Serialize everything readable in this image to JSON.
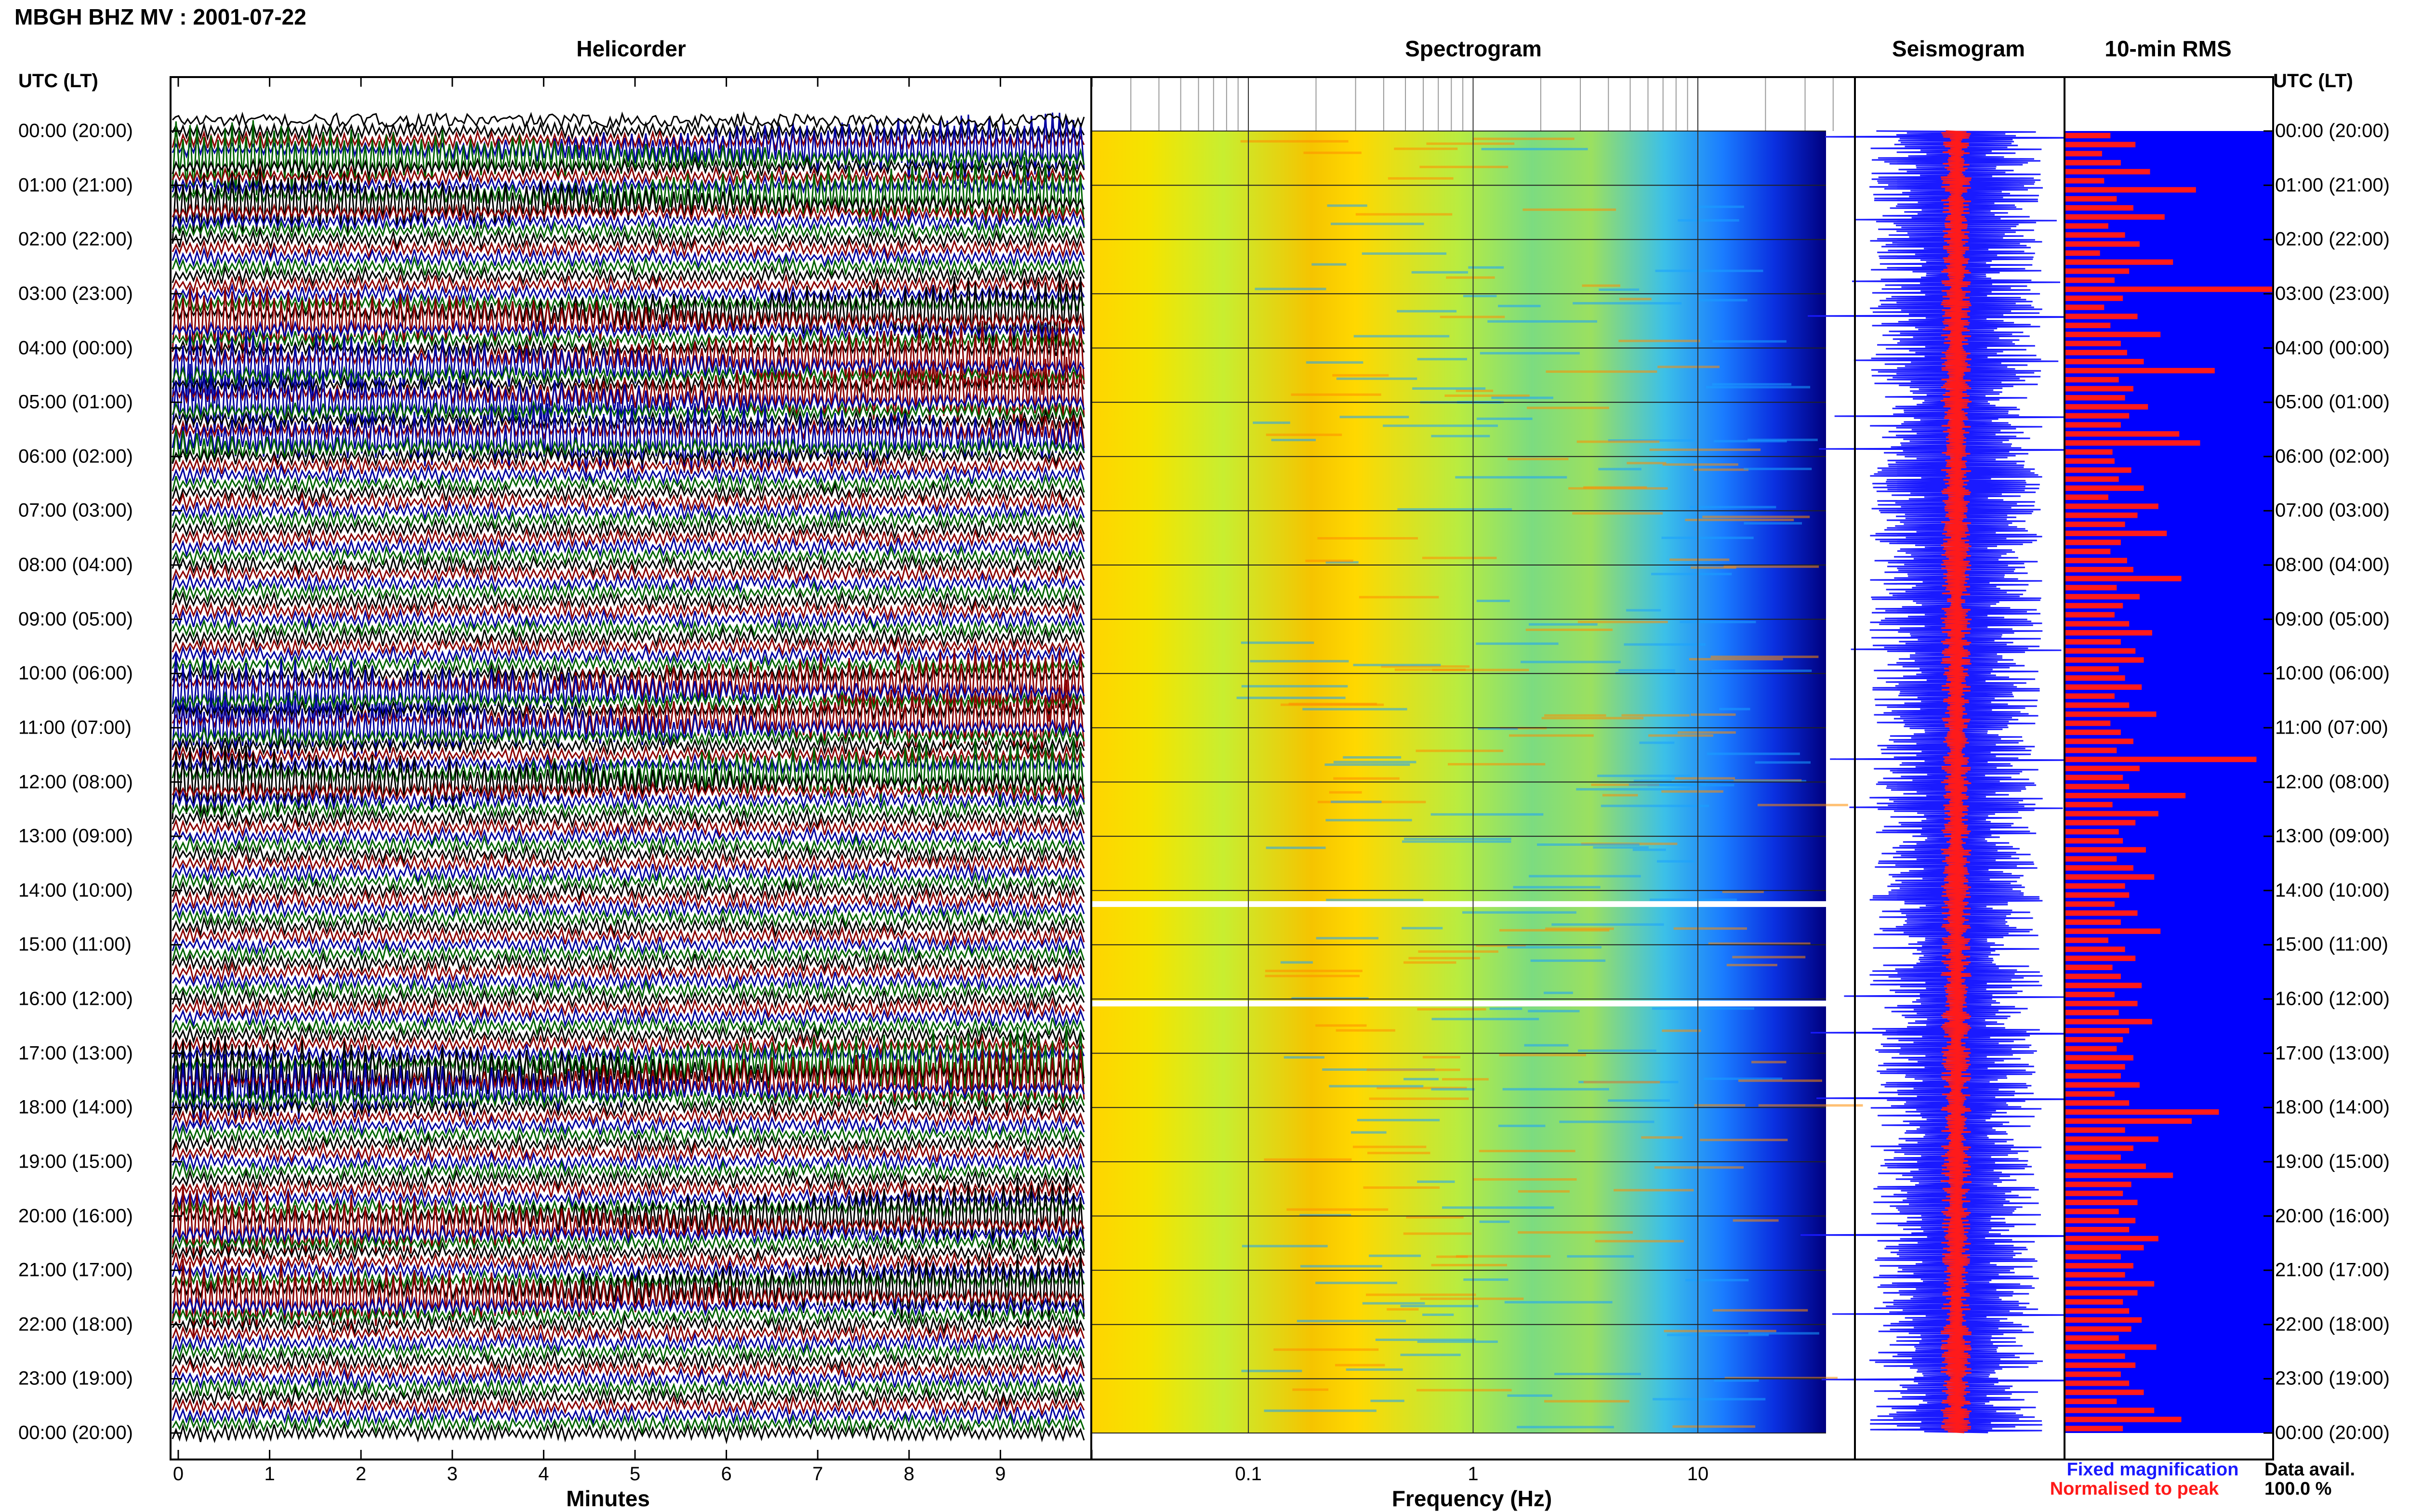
{
  "header": {
    "title": "MBGH BHZ MV : 2001-07-22"
  },
  "panels": {
    "helicorder_title": "Helicorder",
    "spectrogram_title": "Spectrogram",
    "seismogram_title": "Seismogram",
    "rms_title": "10-min RMS"
  },
  "time_axis": {
    "header_left": "UTC (LT)",
    "header_right": "UTC (LT)",
    "labels": [
      "00:00 (20:00)",
      "01:00 (21:00)",
      "02:00 (22:00)",
      "03:00 (23:00)",
      "04:00 (00:00)",
      "05:00 (01:00)",
      "06:00 (02:00)",
      "07:00 (03:00)",
      "08:00 (04:00)",
      "09:00 (05:00)",
      "10:00 (06:00)",
      "11:00 (07:00)",
      "12:00 (08:00)",
      "13:00 (09:00)",
      "14:00 (10:00)",
      "15:00 (11:00)",
      "16:00 (12:00)",
      "17:00 (13:00)",
      "18:00 (14:00)",
      "19:00 (15:00)",
      "20:00 (16:00)",
      "21:00 (17:00)",
      "22:00 (18:00)",
      "23:00 (19:00)",
      "00:00 (20:00)"
    ]
  },
  "helicorder_axis": {
    "label": "Minutes",
    "ticks": [
      "0",
      "1",
      "2",
      "3",
      "4",
      "5",
      "6",
      "7",
      "8",
      "9"
    ]
  },
  "spectrogram_axis": {
    "label": "Frequency (Hz)",
    "ticks": [
      "0.1",
      "1",
      "10"
    ]
  },
  "legend": {
    "fixed": "Fixed magnification",
    "normalised": "Normalised to peak",
    "fixed_color": "#1a1aff",
    "normalised_color": "#ff1a1a"
  },
  "availability": {
    "label": "Data avail.",
    "value": "100.0 %"
  },
  "colors": {
    "helicorder_traces": [
      "#000000",
      "#8b0000",
      "#0000a0",
      "#006400"
    ],
    "spectrogram_low": "#00007f",
    "spectrogram_mid": "#20b0ff",
    "spectrogram_high": "#ffd400",
    "rms_background": "#0000ff",
    "rms_bars": "#ff1a1a"
  },
  "chart_data": [
    {
      "type": "line",
      "name": "Helicorder",
      "xlabel": "Minutes",
      "xlim": [
        0,
        10
      ],
      "ylim": [
        "00:00",
        "24:00"
      ],
      "rows_per_hour": 6,
      "note_events_utc": [
        "00:30",
        "01:20",
        "03:30",
        "04:20",
        "05:00",
        "05:45",
        "10:20",
        "11:00",
        "12:00",
        "17:20",
        "17:40",
        "20:10",
        "21:30"
      ]
    },
    {
      "type": "heatmap",
      "name": "Spectrogram",
      "xlabel": "Frequency (Hz)",
      "xscale": "log",
      "xlim": [
        0.02,
        50
      ],
      "ylim": [
        "00:00",
        "24:00"
      ],
      "gaps_utc": [
        "14:15",
        "16:05"
      ]
    },
    {
      "type": "line",
      "name": "Seismogram",
      "ylim": [
        "00:00",
        "24:00"
      ]
    },
    {
      "type": "bar",
      "name": "10-min RMS",
      "orientation": "horizontal",
      "interval_minutes": 10,
      "values": [
        0.22,
        0.34,
        0.18,
        0.27,
        0.41,
        0.19,
        0.63,
        0.25,
        0.33,
        0.48,
        0.21,
        0.29,
        0.36,
        0.17,
        0.52,
        0.31,
        0.24,
        1.0,
        0.28,
        0.19,
        0.35,
        0.22,
        0.46,
        0.27,
        0.3,
        0.38,
        0.72,
        0.26,
        0.33,
        0.29,
        0.4,
        0.31,
        0.27,
        0.55,
        0.65,
        0.23,
        0.24,
        0.32,
        0.26,
        0.38,
        0.21,
        0.45,
        0.35,
        0.29,
        0.49,
        0.27,
        0.22,
        0.3,
        0.33,
        0.56,
        0.25,
        0.36,
        0.28,
        0.24,
        0.31,
        0.42,
        0.27,
        0.34,
        0.38,
        0.26,
        0.29,
        0.37,
        0.24,
        0.31,
        0.44,
        0.22,
        0.27,
        0.33,
        0.25,
        0.92,
        0.36,
        0.28,
        0.31,
        0.58,
        0.23,
        0.45,
        0.34,
        0.26,
        0.28,
        0.39,
        0.25,
        0.33,
        0.43,
        0.29,
        0.31,
        0.24,
        0.35,
        0.27,
        0.46,
        0.21,
        0.29,
        0.34,
        0.23,
        0.27,
        0.37,
        0.24,
        0.35,
        0.26,
        0.42,
        0.31,
        0.28,
        0.25,
        0.33,
        0.29,
        0.27,
        0.36,
        0.24,
        0.31,
        0.74,
        0.61,
        0.29,
        0.45,
        0.33,
        0.27,
        0.39,
        0.52,
        0.32,
        0.28,
        0.35,
        0.26,
        0.34,
        0.31,
        0.45,
        0.38,
        0.27,
        0.33,
        0.29,
        0.43,
        0.35,
        0.28,
        0.31,
        0.37,
        0.32,
        0.26,
        0.44,
        0.29,
        0.34,
        0.27,
        0.31,
        0.38,
        0.25,
        0.43,
        0.56,
        0.28
      ]
    }
  ]
}
